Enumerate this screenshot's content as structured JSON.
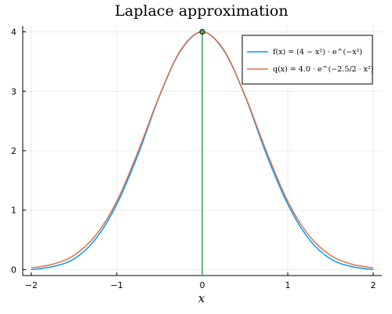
{
  "chart_data": {
    "type": "line",
    "title": "Laplace approximation",
    "xlabel": "x",
    "ylabel": "",
    "xlim": [
      -2.1,
      2.1
    ],
    "ylim": [
      -0.1,
      4.1
    ],
    "x_ticks": [
      -2,
      -1,
      0,
      1,
      2
    ],
    "y_ticks": [
      0,
      1,
      2,
      3,
      4
    ],
    "x_tick_labels": [
      "−2",
      "−1",
      "0",
      "1",
      "2"
    ],
    "y_tick_labels": [
      "0",
      "1",
      "2",
      "3",
      "4"
    ],
    "grid": true,
    "legend_position": "top-right",
    "x": [
      -2.0,
      -1.75,
      -1.5,
      -1.25,
      -1.0,
      -0.75,
      -0.5,
      -0.25,
      0.0,
      0.25,
      0.5,
      0.75,
      1.0,
      1.25,
      1.5,
      1.75,
      2.0
    ],
    "series": [
      {
        "name": "f(x) = (4 − x²) · e^(−x²)",
        "color": "#009AFA",
        "values": [
          0.0,
          0.05,
          0.18,
          0.51,
          1.1,
          1.94,
          2.92,
          3.69,
          4.0,
          3.69,
          2.92,
          1.94,
          1.1,
          0.51,
          0.18,
          0.05,
          0.0
        ]
      },
      {
        "name": "q(x) = 4.0 · e^(−2.5/2 · x²)",
        "color": "#E36F47",
        "values": [
          0.03,
          0.09,
          0.24,
          0.57,
          1.15,
          1.99,
          2.93,
          3.7,
          4.0,
          3.7,
          2.93,
          1.99,
          1.15,
          0.57,
          0.24,
          0.09,
          0.03
        ]
      }
    ],
    "mode_marker": {
      "x": 0,
      "y": 4.0,
      "color": "#3EA44E"
    },
    "mode_line": {
      "x": 0,
      "color": "#3EA44E"
    }
  }
}
